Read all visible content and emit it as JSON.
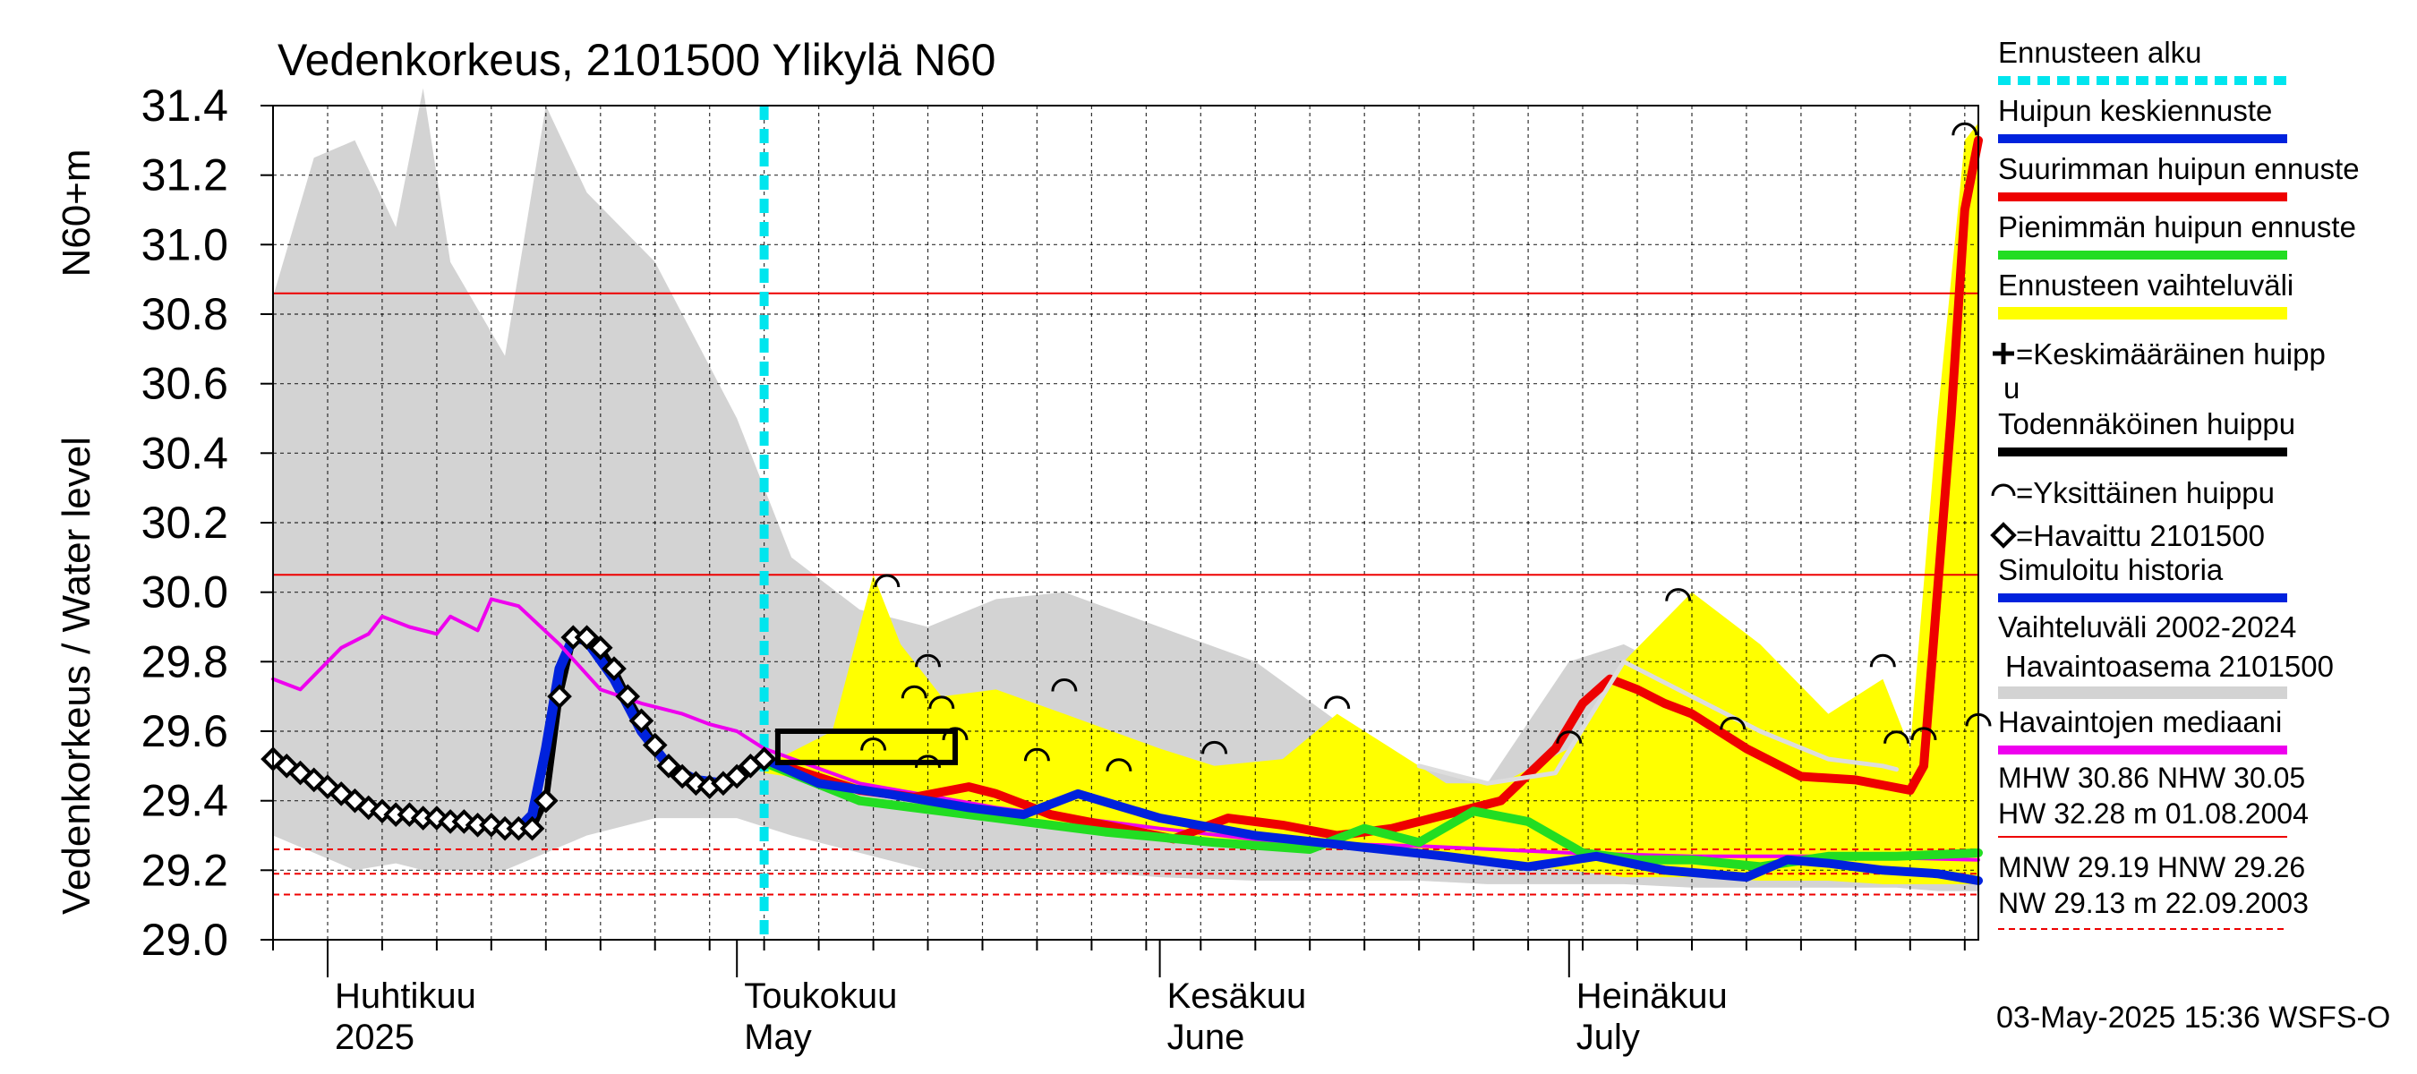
{
  "chart_data": {
    "type": "line",
    "title": "Vedenkorkeus, 2101500 Ylikylä N60",
    "ylabel": "Vedenkorkeus / Water level",
    "ylabel_unit": "N60+m",
    "ylim": [
      29.0,
      31.4
    ],
    "yticks": [
      "29.0",
      "29.2",
      "29.4",
      "29.6",
      "29.8",
      "30.0",
      "30.2",
      "30.4",
      "30.6",
      "30.8",
      "31.0",
      "31.2",
      "31.4"
    ],
    "x_range": [
      "2025-03-28",
      "2025-07-31"
    ],
    "month_labels": [
      {
        "line1": "Huhtikuu",
        "line2": "2025",
        "date": "2025-04-01"
      },
      {
        "line1": "Toukokuu",
        "line2": "May",
        "date": "2025-05-01"
      },
      {
        "line1": "Kesäkuu",
        "line2": "June",
        "date": "2025-06-01"
      },
      {
        "line1": "Heinäkuu",
        "line2": "July",
        "date": "2025-07-01"
      }
    ],
    "forecast_start": "2025-05-03",
    "grid": true,
    "legend_position": "right",
    "legend": [
      {
        "label": "Ennusteen alku",
        "color": "#00e5ee",
        "style": "dashed"
      },
      {
        "label": "Huipun keskiennuste",
        "color": "#0022dd",
        "style": "line"
      },
      {
        "label": "Suurimman huipun ennuste",
        "color": "#ee0000",
        "style": "line"
      },
      {
        "label": "Pienimmän huipun ennuste",
        "color": "#22dd22",
        "style": "line"
      },
      {
        "label": "Ennusteen vaihteluväli",
        "color": "#ffff00",
        "style": "band"
      },
      {
        "label": "=Keskimääräinen huippu",
        "color": "#000000",
        "style": "plus"
      },
      {
        "label": "Todennäköinen huippu",
        "color": "#000000",
        "style": "line"
      },
      {
        "label": "=Yksittäinen huippu",
        "color": "#000000",
        "style": "arc"
      },
      {
        "label": "=Havaittu 2101500",
        "color": "#000000",
        "style": "diamond"
      },
      {
        "label": "Simuloitu historia",
        "color": "#0022dd",
        "style": "line"
      },
      {
        "label": "Vaihteluväli 2002-2024",
        "label2": "Havaintoasema 2101500",
        "color": "#d3d3d3",
        "style": "band"
      },
      {
        "label": "Havaintojen mediaani",
        "color": "#ee00ee",
        "style": "line"
      }
    ],
    "stats_block_1": {
      "line1": "MHW  30.86 NHW  30.05",
      "line2": "HW  32.28 m 01.08.2004"
    },
    "stats_block_2": {
      "line1": "MNW  29.19 HNW  29.26",
      "line2": "NW  29.13 m 22.09.2003"
    },
    "reference_lines": [
      {
        "name": "MHW",
        "value": 30.86,
        "style": "solid"
      },
      {
        "name": "NHW",
        "value": 30.05,
        "style": "solid"
      },
      {
        "name": "HNW",
        "value": 29.26,
        "style": "dashed"
      },
      {
        "name": "MNW",
        "value": 29.19,
        "style": "dashed"
      },
      {
        "name": "NW",
        "value": 29.13,
        "style": "dashed"
      }
    ],
    "footer": "03-May-2025 15:36 WSFS-O",
    "history_band": {
      "dates": [
        "2025-03-28",
        "2025-03-31",
        "2025-04-03",
        "2025-04-06",
        "2025-04-08",
        "2025-04-10",
        "2025-04-14",
        "2025-04-17",
        "2025-04-20",
        "2025-04-25",
        "2025-05-01",
        "2025-05-05",
        "2025-05-10",
        "2025-05-15",
        "2025-05-20",
        "2025-05-25",
        "2025-06-01",
        "2025-06-08",
        "2025-06-15",
        "2025-06-20",
        "2025-06-25",
        "2025-07-01",
        "2025-07-05",
        "2025-07-10",
        "2025-07-15",
        "2025-07-20",
        "2025-07-25",
        "2025-07-28",
        "2025-07-31"
      ],
      "high": [
        30.85,
        31.25,
        31.3,
        31.05,
        31.45,
        30.95,
        30.68,
        31.4,
        31.15,
        30.95,
        30.5,
        30.1,
        29.95,
        29.9,
        29.98,
        30.0,
        29.9,
        29.8,
        29.6,
        29.5,
        29.45,
        29.8,
        29.85,
        29.75,
        29.75,
        29.6,
        29.45,
        29.5,
        31.4
      ],
      "low": [
        29.3,
        29.25,
        29.2,
        29.22,
        29.2,
        29.2,
        29.2,
        29.25,
        29.3,
        29.35,
        29.35,
        29.3,
        29.25,
        29.2,
        29.2,
        29.2,
        29.18,
        29.17,
        29.17,
        29.17,
        29.16,
        29.16,
        29.16,
        29.15,
        29.15,
        29.15,
        29.15,
        29.14,
        29.14
      ]
    },
    "forecast_band": {
      "dates": [
        "2025-05-03",
        "2025-05-08",
        "2025-05-11",
        "2025-05-13",
        "2025-05-16",
        "2025-05-20",
        "2025-05-25",
        "2025-06-01",
        "2025-06-05",
        "2025-06-10",
        "2025-06-14",
        "2025-06-18",
        "2025-06-22",
        "2025-06-26",
        "2025-07-01",
        "2025-07-05",
        "2025-07-10",
        "2025-07-15",
        "2025-07-20",
        "2025-07-24",
        "2025-07-26",
        "2025-07-28",
        "2025-07-30",
        "2025-07-31"
      ],
      "high": [
        29.5,
        29.6,
        30.05,
        29.85,
        29.7,
        29.72,
        29.65,
        29.55,
        29.5,
        29.52,
        29.65,
        29.55,
        29.45,
        29.45,
        29.55,
        29.8,
        30.0,
        29.85,
        29.65,
        29.75,
        29.55,
        30.5,
        31.3,
        31.35
      ],
      "low": [
        29.48,
        29.45,
        29.42,
        29.4,
        29.38,
        29.35,
        29.32,
        29.3,
        29.28,
        29.27,
        29.26,
        29.25,
        29.24,
        29.22,
        29.2,
        29.18,
        29.18,
        29.17,
        29.17,
        29.16,
        29.16,
        29.16,
        29.16,
        29.16
      ]
    },
    "series": [
      {
        "name": "Havaittu 2101500",
        "color": "#000000",
        "x": [
          "2025-03-28",
          "2025-03-29",
          "2025-03-30",
          "2025-03-31",
          "2025-04-01",
          "2025-04-02",
          "2025-04-03",
          "2025-04-04",
          "2025-04-05",
          "2025-04-06",
          "2025-04-07",
          "2025-04-08",
          "2025-04-09",
          "2025-04-10",
          "2025-04-11",
          "2025-04-12",
          "2025-04-13",
          "2025-04-14",
          "2025-04-15",
          "2025-04-16",
          "2025-04-17",
          "2025-04-18",
          "2025-04-19",
          "2025-04-20",
          "2025-04-21",
          "2025-04-22",
          "2025-04-23",
          "2025-04-24",
          "2025-04-25",
          "2025-04-26",
          "2025-04-27",
          "2025-04-28",
          "2025-04-29",
          "2025-04-30",
          "2025-05-01",
          "2025-05-02",
          "2025-05-03"
        ],
        "y": [
          29.52,
          29.5,
          29.48,
          29.46,
          29.44,
          29.42,
          29.4,
          29.38,
          29.37,
          29.36,
          29.36,
          29.35,
          29.35,
          29.34,
          29.34,
          29.33,
          29.33,
          29.32,
          29.32,
          29.32,
          29.4,
          29.7,
          29.87,
          29.87,
          29.84,
          29.78,
          29.7,
          29.63,
          29.56,
          29.5,
          29.47,
          29.45,
          29.44,
          29.45,
          29.47,
          29.5,
          29.52
        ]
      },
      {
        "name": "Simuloitu historia",
        "color": "#0022dd",
        "x": [
          "2025-04-15",
          "2025-04-16",
          "2025-04-17",
          "2025-04-18",
          "2025-04-19",
          "2025-04-20",
          "2025-04-22",
          "2025-04-24",
          "2025-04-26",
          "2025-04-28",
          "2025-04-30",
          "2025-05-01",
          "2025-05-03"
        ],
        "y": [
          29.32,
          29.36,
          29.55,
          29.78,
          29.87,
          29.86,
          29.75,
          29.6,
          29.5,
          29.46,
          29.45,
          29.47,
          29.52
        ]
      },
      {
        "name": "Havaintojen mediaani",
        "color": "#ee00ee",
        "x": [
          "2025-03-28",
          "2025-03-30",
          "2025-04-02",
          "2025-04-04",
          "2025-04-05",
          "2025-04-07",
          "2025-04-09",
          "2025-04-10",
          "2025-04-12",
          "2025-04-13",
          "2025-04-15",
          "2025-04-18",
          "2025-04-21",
          "2025-04-24",
          "2025-04-27",
          "2025-04-29",
          "2025-05-01",
          "2025-05-03",
          "2025-05-10",
          "2025-05-20",
          "2025-06-01",
          "2025-06-10",
          "2025-06-20",
          "2025-07-01",
          "2025-07-10",
          "2025-07-20",
          "2025-07-31"
        ],
        "y": [
          29.75,
          29.72,
          29.84,
          29.88,
          29.93,
          29.9,
          29.88,
          29.93,
          29.89,
          29.98,
          29.96,
          29.85,
          29.72,
          29.68,
          29.65,
          29.62,
          29.6,
          29.55,
          29.45,
          29.38,
          29.32,
          29.28,
          29.27,
          29.25,
          29.24,
          29.24,
          29.23
        ]
      },
      {
        "name": "Suurimman huipun ennuste",
        "color": "#ee0000",
        "x": [
          "2025-05-03",
          "2025-05-06",
          "2025-05-10",
          "2025-05-14",
          "2025-05-18",
          "2025-05-20",
          "2025-05-24",
          "2025-05-28",
          "2025-06-02",
          "2025-06-06",
          "2025-06-10",
          "2025-06-14",
          "2025-06-18",
          "2025-06-22",
          "2025-06-26",
          "2025-06-30",
          "2025-07-02",
          "2025-07-04",
          "2025-07-06",
          "2025-07-08",
          "2025-07-10",
          "2025-07-14",
          "2025-07-18",
          "2025-07-22",
          "2025-07-26",
          "2025-07-27",
          "2025-07-29",
          "2025-07-30",
          "2025-07-31"
        ],
        "y": [
          29.52,
          29.48,
          29.43,
          29.41,
          29.44,
          29.42,
          29.36,
          29.33,
          29.29,
          29.35,
          29.33,
          29.3,
          29.32,
          29.36,
          29.4,
          29.55,
          29.68,
          29.75,
          29.72,
          29.68,
          29.65,
          29.55,
          29.47,
          29.46,
          29.43,
          29.5,
          30.5,
          31.1,
          31.3
        ]
      },
      {
        "name": "Pienimmän huipun ennuste",
        "color": "#22dd22",
        "x": [
          "2025-05-03",
          "2025-05-10",
          "2025-05-20",
          "2025-05-28",
          "2025-06-05",
          "2025-06-12",
          "2025-06-16",
          "2025-06-20",
          "2025-06-24",
          "2025-06-28",
          "2025-07-02",
          "2025-07-06",
          "2025-07-10",
          "2025-07-15",
          "2025-07-20",
          "2025-07-25",
          "2025-07-31"
        ],
        "y": [
          29.51,
          29.4,
          29.35,
          29.31,
          29.28,
          29.26,
          29.32,
          29.28,
          29.37,
          29.34,
          29.25,
          29.23,
          29.23,
          29.21,
          29.24,
          29.24,
          29.25
        ]
      },
      {
        "name": "Huipun keskiennuste",
        "color": "#0022dd",
        "x": [
          "2025-05-03",
          "2025-05-07",
          "2025-05-12",
          "2025-05-18",
          "2025-05-22",
          "2025-05-26",
          "2025-06-01",
          "2025-06-08",
          "2025-06-15",
          "2025-06-22",
          "2025-06-28",
          "2025-07-03",
          "2025-07-08",
          "2025-07-14",
          "2025-07-17",
          "2025-07-20",
          "2025-07-24",
          "2025-07-28",
          "2025-07-31"
        ],
        "y": [
          29.52,
          29.45,
          29.42,
          29.38,
          29.36,
          29.42,
          29.35,
          29.3,
          29.27,
          29.24,
          29.21,
          29.24,
          29.2,
          29.18,
          29.23,
          29.22,
          29.2,
          29.19,
          29.17
        ]
      },
      {
        "name": "Ennusteen vaihteluväli median",
        "color": "#dddddd",
        "x": [
          "2025-06-20",
          "2025-06-25",
          "2025-06-30",
          "2025-07-05",
          "2025-07-10",
          "2025-07-15",
          "2025-07-20",
          "2025-07-24",
          "2025-07-25"
        ],
        "y": [
          29.5,
          29.45,
          29.48,
          29.8,
          29.7,
          29.6,
          29.52,
          29.5,
          29.49
        ]
      }
    ],
    "peak_box": {
      "x0": "2025-05-04",
      "x1": "2025-05-17",
      "y0": 29.51,
      "y1": 29.6
    },
    "individual_peaks": [
      {
        "x": "2025-05-12",
        "y": 30.03
      },
      {
        "x": "2025-05-15",
        "y": 29.8
      },
      {
        "x": "2025-05-14",
        "y": 29.71
      },
      {
        "x": "2025-05-16",
        "y": 29.68
      },
      {
        "x": "2025-05-11",
        "y": 29.56
      },
      {
        "x": "2025-05-15",
        "y": 29.51
      },
      {
        "x": "2025-05-17",
        "y": 29.59
      },
      {
        "x": "2025-05-23",
        "y": 29.53
      },
      {
        "x": "2025-05-25",
        "y": 29.73
      },
      {
        "x": "2025-05-29",
        "y": 29.5
      },
      {
        "x": "2025-06-05",
        "y": 29.55
      },
      {
        "x": "2025-06-14",
        "y": 29.68
      },
      {
        "x": "2025-07-01",
        "y": 29.58
      },
      {
        "x": "2025-07-09",
        "y": 29.99
      },
      {
        "x": "2025-07-13",
        "y": 29.62
      },
      {
        "x": "2025-07-24",
        "y": 29.8
      },
      {
        "x": "2025-07-25",
        "y": 29.58
      },
      {
        "x": "2025-07-27",
        "y": 29.59
      },
      {
        "x": "2025-07-31",
        "y": 29.63
      },
      {
        "x": "2025-07-30",
        "y": 31.33
      }
    ]
  }
}
